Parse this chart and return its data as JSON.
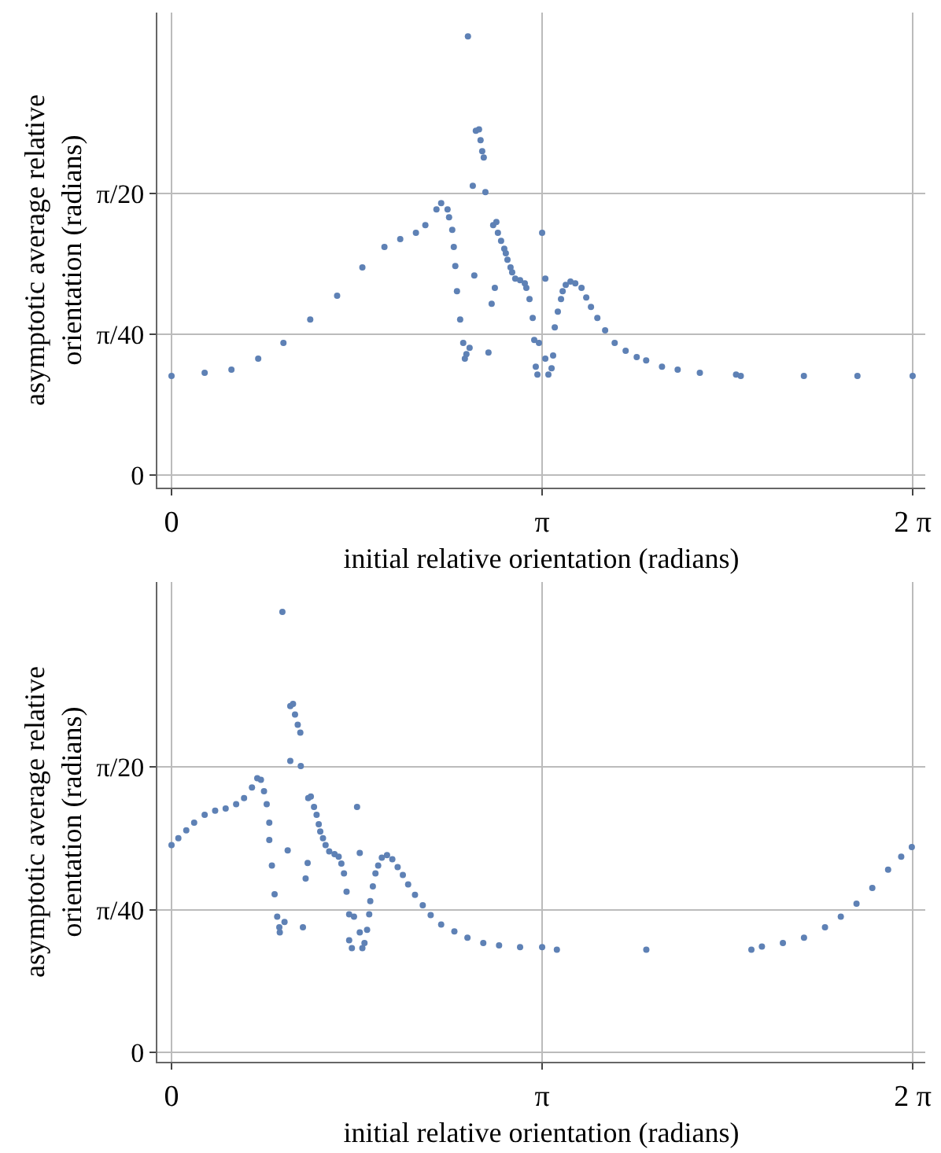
{
  "chart_data": [
    {
      "type": "scatter",
      "xlabel": "initial relative orientation (radians)",
      "ylabel": "asymptotic average relative orientation (radians)",
      "color": "#5e81b5",
      "marker": "circle",
      "grid": true,
      "xlim": [
        -0.12,
        6.39
      ],
      "ylim": [
        -0.007,
        0.258
      ],
      "xticks": [
        {
          "value": 0,
          "label": "0"
        },
        {
          "value": 3.1416,
          "label": "π"
        },
        {
          "value": 6.2832,
          "label": "2 π"
        }
      ],
      "yticks": [
        {
          "value": 0,
          "label": "0"
        },
        {
          "value": 0.0785,
          "label": "π/40"
        },
        {
          "value": 0.1571,
          "label": "π/20"
        }
      ],
      "x": [
        0,
        0.281,
        0.508,
        0.735,
        0.949,
        1.176,
        1.404,
        1.618,
        1.805,
        1.939,
        2.072,
        2.152,
        2.246,
        2.286,
        2.34,
        2.353,
        2.38,
        2.393,
        2.406,
        2.42,
        2.447,
        2.473,
        2.487,
        2.5,
        2.527,
        2.513,
        2.554,
        2.567,
        2.58,
        2.607,
        2.62,
        2.634,
        2.647,
        2.661,
        2.687,
        2.714,
        2.741,
        2.727,
        2.754,
        2.767,
        2.794,
        2.821,
        2.834,
        2.848,
        2.874,
        2.888,
        2.914,
        2.955,
        2.995,
        3.008,
        3.035,
        3.062,
        3.075,
        3.088,
        3.102,
        3.115,
        3.142,
        3.169,
        3.169,
        3.195,
        3.222,
        3.235,
        3.249,
        3.275,
        3.302,
        3.316,
        3.342,
        3.382,
        3.423,
        3.476,
        3.516,
        3.556,
        3.61,
        3.676,
        3.757,
        3.85,
        3.944,
        4.024,
        4.158,
        4.291,
        4.479,
        4.786,
        4.826,
        5.361,
        5.815,
        6.283
      ],
      "values": [
        0.0553,
        0.057,
        0.0588,
        0.0649,
        0.0737,
        0.0868,
        0.1,
        0.1158,
        0.1272,
        0.1316,
        0.1351,
        0.1394,
        0.1482,
        0.1517,
        0.1482,
        0.1438,
        0.1368,
        0.1272,
        0.1166,
        0.1026,
        0.0868,
        0.0737,
        0.0649,
        0.0675,
        0.071,
        0.2447,
        0.1614,
        0.1114,
        0.1921,
        0.1929,
        0.1868,
        0.1807,
        0.1772,
        0.1579,
        0.0684,
        0.0956,
        0.1044,
        0.1394,
        0.1412,
        0.1351,
        0.1307,
        0.1263,
        0.1237,
        0.1201,
        0.1158,
        0.1131,
        0.1096,
        0.1087,
        0.107,
        0.1044,
        0.0982,
        0.0877,
        0.0754,
        0.0605,
        0.0561,
        0.0737,
        0.1351,
        0.1096,
        0.0649,
        0.0561,
        0.0596,
        0.0667,
        0.0824,
        0.0912,
        0.0982,
        0.1026,
        0.1061,
        0.1079,
        0.107,
        0.1044,
        0.0991,
        0.0938,
        0.0877,
        0.0807,
        0.0737,
        0.0693,
        0.0658,
        0.064,
        0.0605,
        0.0588,
        0.057,
        0.0561,
        0.0553,
        0.0553,
        0.0553,
        0.0553
      ]
    },
    {
      "type": "scatter",
      "xlabel": "initial relative orientation (radians)",
      "ylabel": "asymptotic average relative orientation (radians)",
      "color": "#5e81b5",
      "marker": "circle",
      "grid": true,
      "xlim": [
        -0.12,
        6.39
      ],
      "ylim": [
        -0.005,
        0.259
      ],
      "xticks": [
        {
          "value": 0,
          "label": "0"
        },
        {
          "value": 3.1416,
          "label": "π"
        },
        {
          "value": 6.2832,
          "label": "2 π"
        }
      ],
      "yticks": [
        {
          "value": 0,
          "label": "0"
        },
        {
          "value": 0.0785,
          "label": "π/40"
        },
        {
          "value": 0.1571,
          "label": "π/20"
        }
      ],
      "x": [
        0,
        0.058,
        0.125,
        0.192,
        0.281,
        0.37,
        0.459,
        0.548,
        0.615,
        0.682,
        0.727,
        0.758,
        0.784,
        0.807,
        0.829,
        0.829,
        0.851,
        0.874,
        0.896,
        0.914,
        0.918,
        0.958,
        0.94,
        1.007,
        1.03,
        1.047,
        1.07,
        1.092,
        1.007,
        1.096,
        0.985,
        1.114,
        1.137,
        1.154,
        1.159,
        1.181,
        1.208,
        1.23,
        1.248,
        1.261,
        1.284,
        1.306,
        1.337,
        1.382,
        1.417,
        1.44,
        1.462,
        1.484,
        1.506,
        1.547,
        1.506,
        1.529,
        1.573,
        1.596,
        1.596,
        1.618,
        1.636,
        1.658,
        1.676,
        1.685,
        1.707,
        1.729,
        1.752,
        1.783,
        1.827,
        1.872,
        1.917,
        1.961,
        2.006,
        2.064,
        2.13,
        2.197,
        2.286,
        2.398,
        2.509,
        2.643,
        2.777,
        2.955,
        3.142,
        3.267,
        4.025,
        4.916,
        5.005,
        5.183,
        5.362,
        5.54,
        5.674,
        5.807,
        5.941,
        6.075,
        6.186,
        6.276
      ],
      "values": [
        0.1142,
        0.118,
        0.1223,
        0.1266,
        0.1309,
        0.1332,
        0.1344,
        0.1367,
        0.1401,
        0.1459,
        0.151,
        0.1502,
        0.1439,
        0.1367,
        0.1266,
        0.1171,
        0.103,
        0.0872,
        0.0748,
        0.069,
        0.0662,
        0.0719,
        0.2425,
        0.1907,
        0.1919,
        0.1861,
        0.1804,
        0.1761,
        0.1605,
        0.1577,
        0.1113,
        0.069,
        0.0958,
        0.1044,
        0.1401,
        0.141,
        0.1352,
        0.1309,
        0.1257,
        0.1217,
        0.118,
        0.1142,
        0.1108,
        0.1093,
        0.1079,
        0.1041,
        0.0987,
        0.0886,
        0.0762,
        0.0748,
        0.0619,
        0.0575,
        0.1352,
        0.1099,
        0.0662,
        0.0575,
        0.0604,
        0.0676,
        0.0762,
        0.0834,
        0.0915,
        0.0987,
        0.103,
        0.1073,
        0.1087,
        0.1064,
        0.1021,
        0.0978,
        0.0926,
        0.0869,
        0.0811,
        0.0757,
        0.0705,
        0.0667,
        0.0633,
        0.0604,
        0.059,
        0.0581,
        0.0581,
        0.0567,
        0.0567,
        0.0567,
        0.0584,
        0.0604,
        0.0633,
        0.069,
        0.0748,
        0.082,
        0.0906,
        0.1007,
        0.1079,
        0.1131
      ]
    }
  ]
}
